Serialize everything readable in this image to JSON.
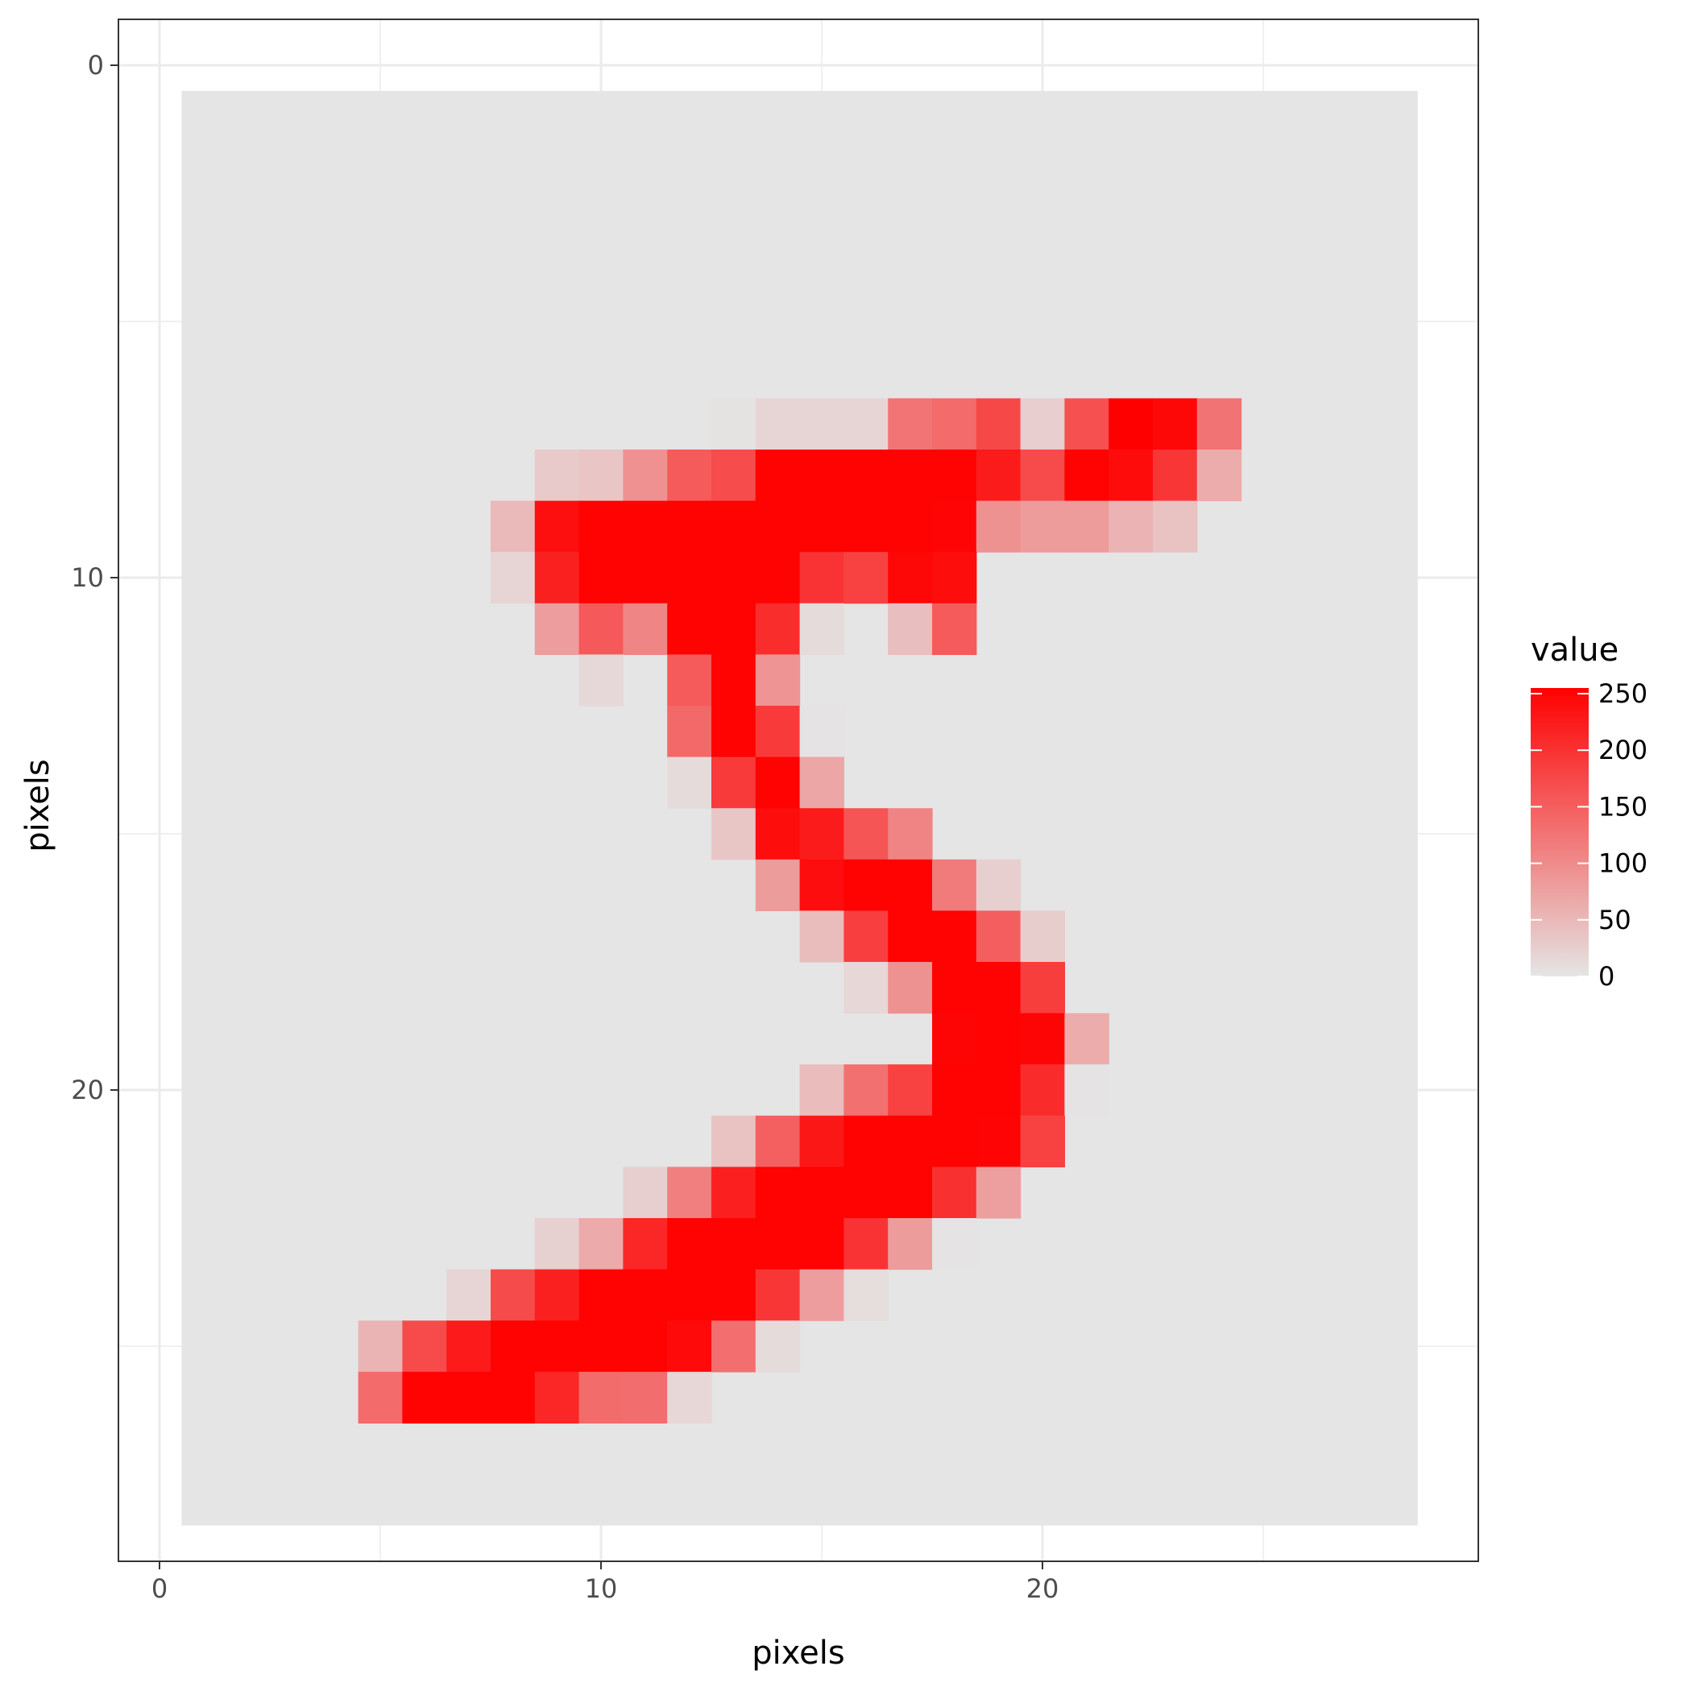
{
  "chart_data": {
    "type": "heatmap",
    "title": "",
    "xlabel": "pixels",
    "ylabel": "pixels",
    "xlim": [
      0,
      28
    ],
    "ylim": [
      0,
      29
    ],
    "y_reversed": true,
    "x_ticks": [
      0,
      10,
      20
    ],
    "y_ticks": [
      0,
      10,
      20
    ],
    "grid": true,
    "background_value": 0,
    "legend": {
      "title": "value",
      "placement": "right",
      "breaks": [
        0,
        50,
        100,
        150,
        200,
        250
      ],
      "low_color": "#e5e5e5",
      "high_color": "#ff0000",
      "limits": [
        0,
        255
      ]
    },
    "grid_size": 28,
    "cells": [
      [
        12,
        6,
        3
      ],
      [
        13,
        6,
        18
      ],
      [
        14,
        6,
        18
      ],
      [
        15,
        6,
        18
      ],
      [
        16,
        6,
        126
      ],
      [
        17,
        6,
        136
      ],
      [
        18,
        6,
        175
      ],
      [
        19,
        6,
        26
      ],
      [
        20,
        6,
        166
      ],
      [
        21,
        6,
        255
      ],
      [
        22,
        6,
        247
      ],
      [
        23,
        6,
        127
      ],
      [
        8,
        7,
        30
      ],
      [
        9,
        7,
        36
      ],
      [
        10,
        7,
        94
      ],
      [
        11,
        7,
        154
      ],
      [
        12,
        7,
        170
      ],
      [
        13,
        7,
        253
      ],
      [
        14,
        7,
        253
      ],
      [
        15,
        7,
        253
      ],
      [
        16,
        7,
        253
      ],
      [
        17,
        7,
        253
      ],
      [
        18,
        7,
        225
      ],
      [
        19,
        7,
        172
      ],
      [
        20,
        7,
        253
      ],
      [
        21,
        7,
        242
      ],
      [
        22,
        7,
        195
      ],
      [
        23,
        7,
        64
      ],
      [
        7,
        8,
        49
      ],
      [
        8,
        8,
        238
      ],
      [
        9,
        8,
        253
      ],
      [
        10,
        8,
        253
      ],
      [
        11,
        8,
        253
      ],
      [
        12,
        8,
        253
      ],
      [
        13,
        8,
        253
      ],
      [
        14,
        8,
        253
      ],
      [
        15,
        8,
        253
      ],
      [
        16,
        8,
        253
      ],
      [
        17,
        8,
        251
      ],
      [
        18,
        8,
        93
      ],
      [
        19,
        8,
        82
      ],
      [
        20,
        8,
        82
      ],
      [
        21,
        8,
        56
      ],
      [
        22,
        8,
        39
      ],
      [
        7,
        9,
        18
      ],
      [
        8,
        9,
        219
      ],
      [
        9,
        9,
        253
      ],
      [
        10,
        9,
        253
      ],
      [
        11,
        9,
        253
      ],
      [
        12,
        9,
        253
      ],
      [
        13,
        9,
        253
      ],
      [
        14,
        9,
        198
      ],
      [
        15,
        9,
        182
      ],
      [
        16,
        9,
        247
      ],
      [
        17,
        9,
        241
      ],
      [
        8,
        10,
        80
      ],
      [
        9,
        10,
        156
      ],
      [
        10,
        10,
        107
      ],
      [
        11,
        10,
        253
      ],
      [
        12,
        10,
        253
      ],
      [
        13,
        10,
        205
      ],
      [
        14,
        10,
        11
      ],
      [
        16,
        10,
        43
      ],
      [
        17,
        10,
        154
      ],
      [
        9,
        11,
        14
      ],
      [
        11,
        11,
        154
      ],
      [
        12,
        11,
        253
      ],
      [
        13,
        11,
        90
      ],
      [
        11,
        12,
        139
      ],
      [
        12,
        12,
        253
      ],
      [
        13,
        12,
        190
      ],
      [
        14,
        12,
        2
      ],
      [
        11,
        13,
        11
      ],
      [
        12,
        13,
        190
      ],
      [
        13,
        13,
        253
      ],
      [
        14,
        13,
        70
      ],
      [
        12,
        14,
        35
      ],
      [
        13,
        14,
        241
      ],
      [
        14,
        14,
        225
      ],
      [
        15,
        14,
        160
      ],
      [
        16,
        14,
        108
      ],
      [
        13,
        15,
        81
      ],
      [
        14,
        15,
        240
      ],
      [
        15,
        15,
        253
      ],
      [
        16,
        15,
        253
      ],
      [
        17,
        15,
        119
      ],
      [
        18,
        15,
        25
      ],
      [
        14,
        16,
        45
      ],
      [
        15,
        16,
        186
      ],
      [
        16,
        16,
        253
      ],
      [
        17,
        16,
        253
      ],
      [
        18,
        16,
        150
      ],
      [
        19,
        16,
        27
      ],
      [
        15,
        17,
        16
      ],
      [
        16,
        17,
        93
      ],
      [
        17,
        17,
        252
      ],
      [
        18,
        17,
        253
      ],
      [
        19,
        17,
        187
      ],
      [
        17,
        18,
        249
      ],
      [
        18,
        18,
        253
      ],
      [
        19,
        18,
        249
      ],
      [
        20,
        18,
        64
      ],
      [
        14,
        19,
        46
      ],
      [
        15,
        19,
        130
      ],
      [
        16,
        19,
        183
      ],
      [
        17,
        19,
        253
      ],
      [
        18,
        19,
        253
      ],
      [
        19,
        19,
        207
      ],
      [
        20,
        19,
        2
      ],
      [
        12,
        20,
        39
      ],
      [
        13,
        20,
        148
      ],
      [
        14,
        20,
        229
      ],
      [
        15,
        20,
        253
      ],
      [
        16,
        20,
        253
      ],
      [
        17,
        20,
        253
      ],
      [
        18,
        20,
        250
      ],
      [
        19,
        20,
        182
      ],
      [
        10,
        21,
        24
      ],
      [
        11,
        21,
        114
      ],
      [
        12,
        21,
        221
      ],
      [
        13,
        21,
        253
      ],
      [
        14,
        21,
        253
      ],
      [
        15,
        21,
        253
      ],
      [
        16,
        21,
        253
      ],
      [
        17,
        21,
        201
      ],
      [
        18,
        21,
        78
      ],
      [
        8,
        22,
        23
      ],
      [
        9,
        22,
        66
      ],
      [
        10,
        22,
        213
      ],
      [
        11,
        22,
        253
      ],
      [
        12,
        22,
        253
      ],
      [
        13,
        22,
        253
      ],
      [
        14,
        22,
        253
      ],
      [
        15,
        22,
        198
      ],
      [
        16,
        22,
        81
      ],
      [
        17,
        22,
        2
      ],
      [
        6,
        23,
        18
      ],
      [
        7,
        23,
        171
      ],
      [
        8,
        23,
        219
      ],
      [
        9,
        23,
        253
      ],
      [
        10,
        23,
        253
      ],
      [
        11,
        23,
        253
      ],
      [
        12,
        23,
        253
      ],
      [
        13,
        23,
        195
      ],
      [
        14,
        23,
        80
      ],
      [
        15,
        23,
        9
      ],
      [
        4,
        24,
        55
      ],
      [
        5,
        24,
        172
      ],
      [
        6,
        24,
        226
      ],
      [
        7,
        24,
        253
      ],
      [
        8,
        24,
        253
      ],
      [
        9,
        24,
        253
      ],
      [
        10,
        24,
        253
      ],
      [
        11,
        24,
        244
      ],
      [
        12,
        24,
        133
      ],
      [
        13,
        24,
        11
      ],
      [
        4,
        25,
        136
      ],
      [
        5,
        25,
        253
      ],
      [
        6,
        25,
        253
      ],
      [
        7,
        25,
        253
      ],
      [
        8,
        25,
        212
      ],
      [
        9,
        25,
        135
      ],
      [
        10,
        25,
        132
      ],
      [
        11,
        25,
        16
      ]
    ]
  }
}
